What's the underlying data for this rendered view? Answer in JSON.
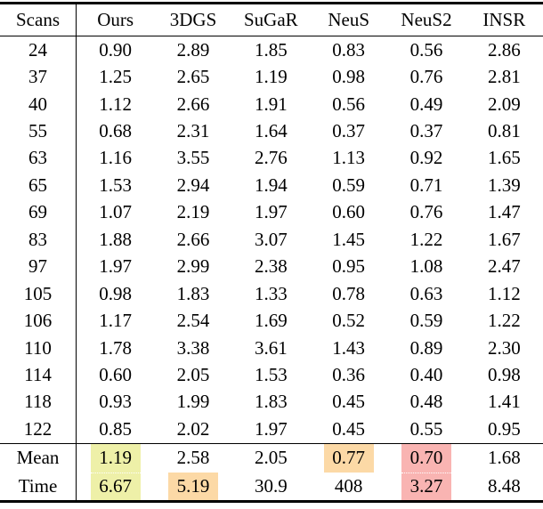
{
  "table": {
    "columns": [
      "Scans",
      "Ours",
      "3DGS",
      "SuGaR",
      "NeuS",
      "NeuS2",
      "INSR"
    ],
    "rows": [
      {
        "scan": "24",
        "values": [
          "0.90",
          "2.89",
          "1.85",
          "0.83",
          "0.56",
          "2.86"
        ]
      },
      {
        "scan": "37",
        "values": [
          "1.25",
          "2.65",
          "1.19",
          "0.98",
          "0.76",
          "2.81"
        ]
      },
      {
        "scan": "40",
        "values": [
          "1.12",
          "2.66",
          "1.91",
          "0.56",
          "0.49",
          "2.09"
        ]
      },
      {
        "scan": "55",
        "values": [
          "0.68",
          "2.31",
          "1.64",
          "0.37",
          "0.37",
          "0.81"
        ]
      },
      {
        "scan": "63",
        "values": [
          "1.16",
          "3.55",
          "2.76",
          "1.13",
          "0.92",
          "1.65"
        ]
      },
      {
        "scan": "65",
        "values": [
          "1.53",
          "2.94",
          "1.94",
          "0.59",
          "0.71",
          "1.39"
        ]
      },
      {
        "scan": "69",
        "values": [
          "1.07",
          "2.19",
          "1.97",
          "0.60",
          "0.76",
          "1.47"
        ]
      },
      {
        "scan": "83",
        "values": [
          "1.88",
          "2.66",
          "3.07",
          "1.45",
          "1.22",
          "1.67"
        ]
      },
      {
        "scan": "97",
        "values": [
          "1.97",
          "2.99",
          "2.38",
          "0.95",
          "1.08",
          "2.47"
        ]
      },
      {
        "scan": "105",
        "values": [
          "0.98",
          "1.83",
          "1.33",
          "0.78",
          "0.63",
          "1.12"
        ]
      },
      {
        "scan": "106",
        "values": [
          "1.17",
          "2.54",
          "1.69",
          "0.52",
          "0.59",
          "1.22"
        ]
      },
      {
        "scan": "110",
        "values": [
          "1.78",
          "3.38",
          "3.61",
          "1.43",
          "0.89",
          "2.30"
        ]
      },
      {
        "scan": "114",
        "values": [
          "0.60",
          "2.05",
          "1.53",
          "0.36",
          "0.40",
          "0.98"
        ]
      },
      {
        "scan": "118",
        "values": [
          "0.93",
          "1.99",
          "1.83",
          "0.45",
          "0.48",
          "1.41"
        ]
      },
      {
        "scan": "122",
        "values": [
          "0.85",
          "2.02",
          "1.97",
          "0.45",
          "0.55",
          "0.95"
        ]
      }
    ],
    "summary_rows": [
      {
        "label": "Mean",
        "values": [
          "1.19",
          "2.58",
          "2.05",
          "0.77",
          "0.70",
          "1.68"
        ],
        "highlights": [
          "third",
          null,
          null,
          "second",
          "best",
          null
        ]
      },
      {
        "label": "Time",
        "values": [
          "6.67",
          "5.19",
          "30.9",
          "408",
          "3.27",
          "8.48"
        ],
        "highlights": [
          "third",
          "second",
          null,
          null,
          "best",
          null
        ]
      }
    ],
    "highlight_colors": {
      "best": "#f9b4b2",
      "second": "#fcd9a6",
      "third": "#eef0a8"
    }
  }
}
